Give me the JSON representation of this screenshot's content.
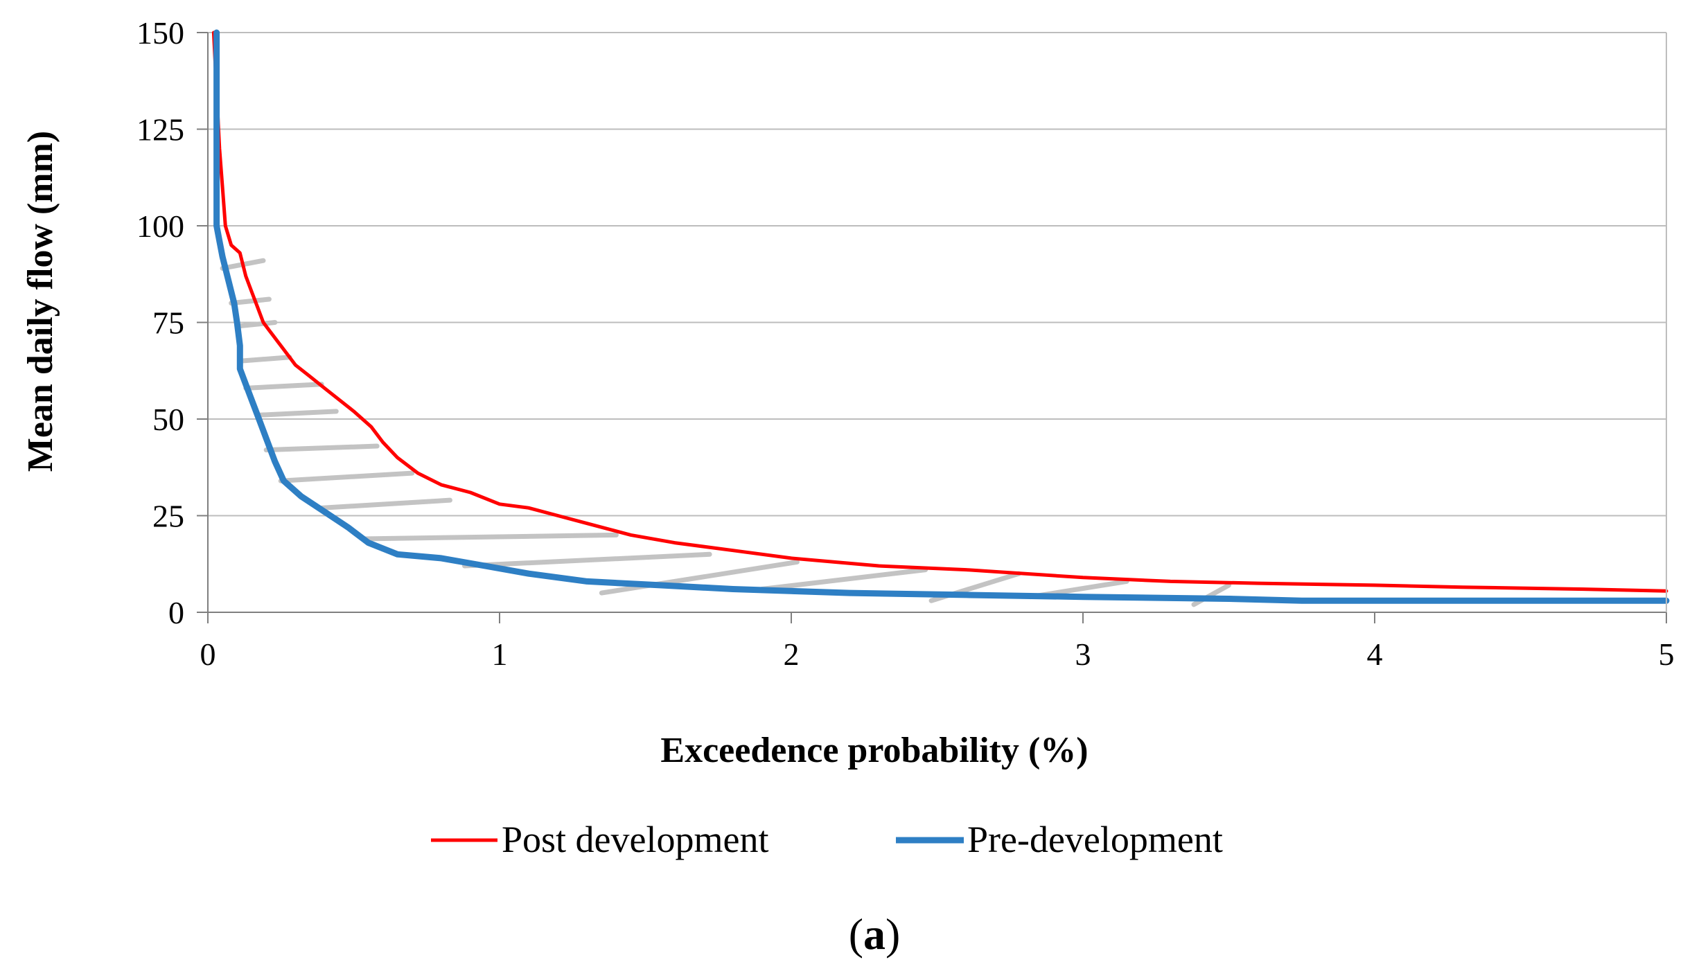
{
  "chart_data": {
    "type": "line",
    "title": "",
    "xlabel": "Exceedence probability (%)",
    "ylabel": "Mean daily flow (mm)",
    "xlim": [
      0,
      5
    ],
    "ylim": [
      0,
      150
    ],
    "x_ticks": [
      "0",
      "1",
      "2",
      "3",
      "4",
      "5"
    ],
    "y_ticks": [
      "0",
      "25",
      "50",
      "75",
      "100",
      "125",
      "150"
    ],
    "grid": "horizontal",
    "legend_position": "bottom",
    "series": [
      {
        "name": "Post development",
        "color": "#ff0000",
        "points": [
          [
            0.02,
            150
          ],
          [
            0.03,
            135
          ],
          [
            0.04,
            120
          ],
          [
            0.05,
            110
          ],
          [
            0.06,
            100
          ],
          [
            0.08,
            95
          ],
          [
            0.11,
            93
          ],
          [
            0.13,
            87
          ],
          [
            0.15,
            83
          ],
          [
            0.17,
            79
          ],
          [
            0.19,
            75
          ],
          [
            0.21,
            73
          ],
          [
            0.24,
            70
          ],
          [
            0.27,
            67
          ],
          [
            0.3,
            64
          ],
          [
            0.35,
            61
          ],
          [
            0.4,
            58
          ],
          [
            0.45,
            55
          ],
          [
            0.5,
            52
          ],
          [
            0.56,
            48
          ],
          [
            0.6,
            44
          ],
          [
            0.65,
            40
          ],
          [
            0.72,
            36
          ],
          [
            0.8,
            33
          ],
          [
            0.9,
            31
          ],
          [
            1.0,
            28
          ],
          [
            1.1,
            27
          ],
          [
            1.2,
            25
          ],
          [
            1.3,
            23
          ],
          [
            1.45,
            20
          ],
          [
            1.6,
            18
          ],
          [
            1.8,
            16
          ],
          [
            2.0,
            14
          ],
          [
            2.3,
            12
          ],
          [
            2.6,
            11
          ],
          [
            3.0,
            9
          ],
          [
            3.3,
            8
          ],
          [
            3.6,
            7.5
          ],
          [
            4.0,
            7
          ],
          [
            4.3,
            6.5
          ],
          [
            4.7,
            6
          ],
          [
            5.0,
            5.5
          ]
        ]
      },
      {
        "name": "Pre-development",
        "color": "#2e7fc4",
        "points": [
          [
            0.03,
            150
          ],
          [
            0.03,
            140
          ],
          [
            0.03,
            125
          ],
          [
            0.03,
            110
          ],
          [
            0.03,
            100
          ],
          [
            0.04,
            96
          ],
          [
            0.05,
            92
          ],
          [
            0.07,
            86
          ],
          [
            0.09,
            80
          ],
          [
            0.1,
            75
          ],
          [
            0.11,
            69
          ],
          [
            0.11,
            63
          ],
          [
            0.13,
            59
          ],
          [
            0.15,
            55
          ],
          [
            0.17,
            51
          ],
          [
            0.19,
            47
          ],
          [
            0.21,
            43
          ],
          [
            0.23,
            39
          ],
          [
            0.26,
            34
          ],
          [
            0.32,
            30
          ],
          [
            0.4,
            26
          ],
          [
            0.48,
            22
          ],
          [
            0.55,
            18
          ],
          [
            0.65,
            15
          ],
          [
            0.8,
            14
          ],
          [
            0.95,
            12
          ],
          [
            1.1,
            10
          ],
          [
            1.3,
            8
          ],
          [
            1.55,
            7
          ],
          [
            1.8,
            6
          ],
          [
            2.2,
            5
          ],
          [
            2.6,
            4.5
          ],
          [
            3.0,
            4
          ],
          [
            3.5,
            3.5
          ],
          [
            3.75,
            3
          ],
          [
            4.5,
            3
          ],
          [
            5.0,
            3
          ]
        ]
      },
      {
        "name": "Hatching between curves",
        "color": "#c3c3c3",
        "segments": [
          [
            [
              0.05,
              89
            ],
            [
              0.19,
              91
            ]
          ],
          [
            [
              0.08,
              80
            ],
            [
              0.21,
              81
            ]
          ],
          [
            [
              0.1,
              74
            ],
            [
              0.23,
              75
            ]
          ],
          [
            [
              0.11,
              65
            ],
            [
              0.28,
              66
            ]
          ],
          [
            [
              0.13,
              58
            ],
            [
              0.39,
              59
            ]
          ],
          [
            [
              0.17,
              51
            ],
            [
              0.44,
              52
            ]
          ],
          [
            [
              0.2,
              42
            ],
            [
              0.58,
              43
            ]
          ],
          [
            [
              0.25,
              34
            ],
            [
              0.7,
              36
            ]
          ],
          [
            [
              0.39,
              27
            ],
            [
              0.83,
              29
            ]
          ],
          [
            [
              0.53,
              19
            ],
            [
              1.4,
              20
            ]
          ],
          [
            [
              0.88,
              12
            ],
            [
              1.72,
              15
            ]
          ],
          [
            [
              1.35,
              5
            ],
            [
              2.02,
              13
            ]
          ],
          [
            [
              1.9,
              6
            ],
            [
              2.46,
              11
            ]
          ],
          [
            [
              2.48,
              3
            ],
            [
              2.78,
              10
            ]
          ],
          [
            [
              2.82,
              4
            ],
            [
              3.15,
              8
            ]
          ],
          [
            [
              3.38,
              2
            ],
            [
              3.5,
              7
            ]
          ]
        ]
      }
    ],
    "legend": [
      {
        "label": "Post development"
      },
      {
        "label": "Pre-development"
      }
    ],
    "caption": {
      "open": "(",
      "letter": "a",
      "close": ")"
    }
  }
}
